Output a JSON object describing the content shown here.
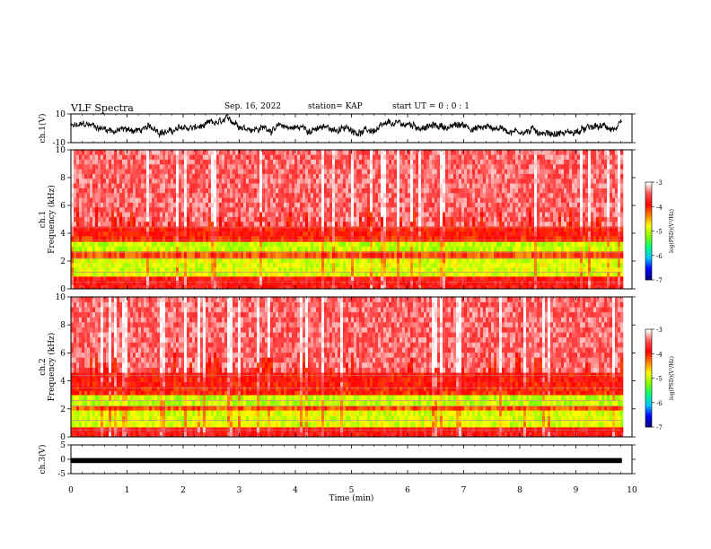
{
  "header": {
    "title": "VLF Spectra",
    "date": "Sep. 16, 2022",
    "station": "station= KAP",
    "start": "start  UT =  0 : 0  : 1"
  },
  "chart_data": [
    {
      "type": "line",
      "name": "ch1-waveform",
      "ylabel": "ch.1(V)",
      "ylim": [
        -10,
        10
      ],
      "yticks": [
        "10",
        "-10"
      ],
      "xlim": [
        0,
        10
      ],
      "data_end_x": 9.82,
      "description": "noisy voltage trace mostly between -5 and 5 V"
    },
    {
      "type": "heatmap",
      "name": "ch1-spectrogram",
      "ylabel": "ch.1\nFrequency (kHz)",
      "ylim": [
        0,
        10
      ],
      "yticks": [
        "0",
        "2",
        "4",
        "6",
        "8",
        "10"
      ],
      "xlim": [
        0,
        10
      ],
      "data_end_x": 9.82,
      "colorbar": {
        "label": "log(PSD)(V²/Hz)",
        "range": [
          -7,
          -3
        ],
        "ticks": [
          "-3",
          "-4",
          "-5",
          "-6",
          "-7"
        ]
      },
      "bands": [
        {
          "from": 0.0,
          "to": 0.9,
          "level": -3.8
        },
        {
          "from": 0.9,
          "to": 2.2,
          "level": -4.9
        },
        {
          "from": 2.2,
          "to": 2.7,
          "level": -4.2
        },
        {
          "from": 2.7,
          "to": 3.4,
          "level": -5.0
        },
        {
          "from": 3.4,
          "to": 3.8,
          "level": -4.0
        },
        {
          "from": 3.8,
          "to": 4.5,
          "level": -3.9
        },
        {
          "from": 4.5,
          "to": 10.0,
          "level": -3.4
        }
      ]
    },
    {
      "type": "heatmap",
      "name": "ch2-spectrogram",
      "ylabel": "ch.2\nFrequency (kHz)",
      "ylim": [
        0,
        10
      ],
      "yticks": [
        "0",
        "2",
        "4",
        "6",
        "8",
        "10"
      ],
      "xlim": [
        0,
        10
      ],
      "data_end_x": 9.82,
      "colorbar": {
        "label": "log(PSD)(V²/Hz)",
        "range": [
          -7,
          -3
        ],
        "ticks": [
          "-3",
          "-4",
          "-5",
          "-6",
          "-7"
        ]
      },
      "bands": [
        {
          "from": 0.0,
          "to": 0.7,
          "level": -3.8
        },
        {
          "from": 0.7,
          "to": 1.9,
          "level": -4.9
        },
        {
          "from": 1.9,
          "to": 2.2,
          "level": -4.2
        },
        {
          "from": 2.2,
          "to": 3.0,
          "level": -5.0
        },
        {
          "from": 3.0,
          "to": 3.6,
          "level": -4.0
        },
        {
          "from": 3.6,
          "to": 4.6,
          "level": -3.9
        },
        {
          "from": 4.6,
          "to": 10.0,
          "level": -3.4
        }
      ]
    },
    {
      "type": "line",
      "name": "ch3-waveform",
      "ylabel": "ch.3(V)",
      "ylim": [
        -5,
        5
      ],
      "yticks": [
        "5",
        "0",
        "-5"
      ],
      "xlim": [
        0,
        10
      ],
      "data_end_x": 9.82,
      "band": [
        -1.0,
        -0.5
      ]
    }
  ],
  "xaxis": {
    "label": "Time (min)",
    "ticks": [
      "0",
      "1",
      "2",
      "3",
      "4",
      "5",
      "6",
      "7",
      "8",
      "9",
      "10"
    ]
  },
  "colors": {
    "stops": [
      "#000080",
      "#0000ff",
      "#00c8ff",
      "#00ff80",
      "#80ff00",
      "#ffff00",
      "#ff8000",
      "#ff0000",
      "#ff5050",
      "#ffffff"
    ]
  }
}
